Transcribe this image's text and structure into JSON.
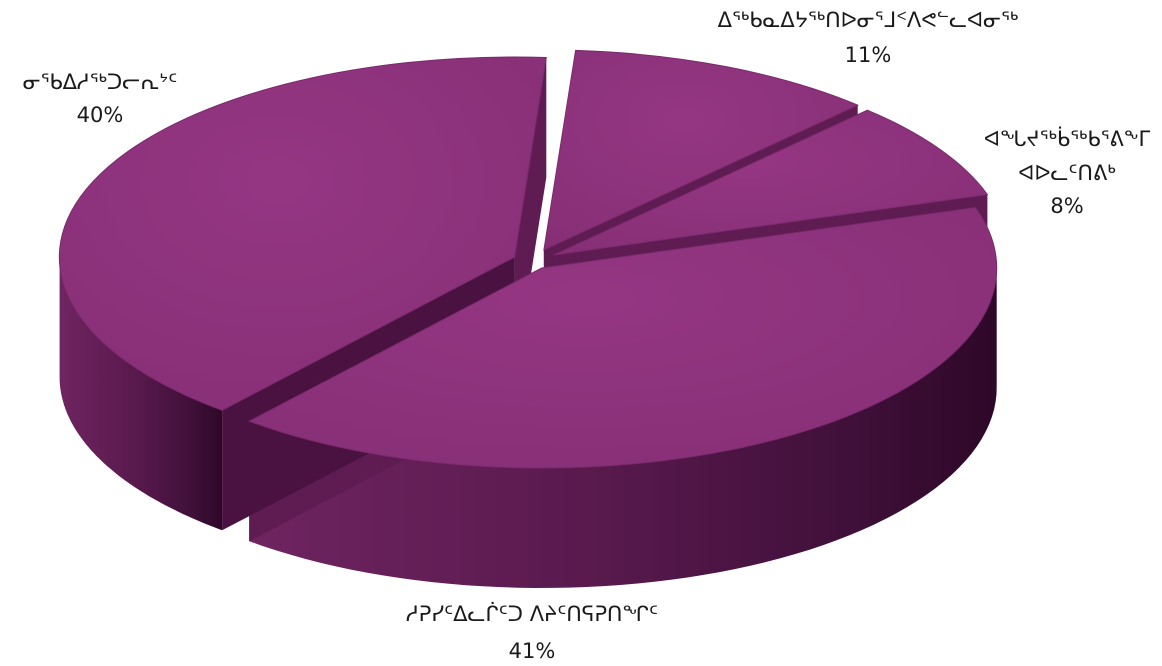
{
  "chart_data": {
    "type": "pie",
    "style": "3d-exploded",
    "colors": {
      "top": "#8a3179",
      "side_light": "#7a2a6a",
      "side_dark": "#3a0a32",
      "edge": "#5c1a4f"
    },
    "slices": [
      {
        "name": "ᐃᖅᑲᓇᐃᔭᖅᑎᐅᓂᕐᒧᑉᐱᕙᓪᓚᐊᓂᖅ",
        "value": 11,
        "value_label": "11%"
      },
      {
        "name": "ᐊᖓᔪᖅᑳᖅᑲᕐᕕᖕᒥ ᐊᐅᓚᑦᑎᕕᒃ",
        "value": 8,
        "value_label": "8%"
      },
      {
        "name": "ᓱᕈᓯᑦᐃᓚᒌᑦᑐ ᐱᔨᑦᑎᕋᕈᑎᖏᑦ",
        "value": 41,
        "value_label": "41%"
      },
      {
        "name": "ᓂᖃᐃᓱᖅᑐᓕᕆᔾᑦ",
        "value": 40,
        "value_label": "40%"
      }
    ]
  }
}
